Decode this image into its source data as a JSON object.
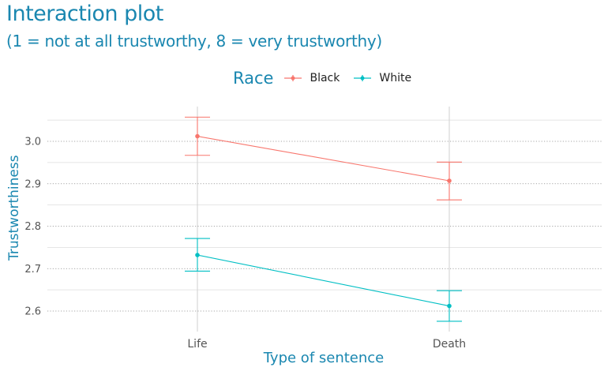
{
  "title": "Interaction plot",
  "subtitle": "(1 = not at all trustworthy, 8 = very trustworthy)",
  "legend": {
    "title": "Race",
    "items": [
      {
        "label": "Black",
        "color": "#F8766D"
      },
      {
        "label": "White",
        "color": "#00BFC4"
      }
    ]
  },
  "chart_data": {
    "type": "line",
    "title": "Interaction plot",
    "subtitle": "(1 = not at all trustworthy, 8 = very trustworthy)",
    "xlabel": "Type of sentence",
    "ylabel": "Trustworthiness",
    "categories": [
      "Life",
      "Death"
    ],
    "ylim": [
      2.56,
      3.07
    ],
    "yticks": [
      2.6,
      2.7,
      2.8,
      2.9,
      3.0
    ],
    "ytick_labels": [
      "2.6",
      "2.7",
      "2.8",
      "2.9",
      "3.0"
    ],
    "series": [
      {
        "name": "Black",
        "color": "#F8766D",
        "values": [
          3.012,
          2.907
        ],
        "lower": [
          2.967,
          2.862
        ],
        "upper": [
          3.057,
          2.951
        ]
      },
      {
        "name": "White",
        "color": "#00BFC4",
        "values": [
          2.732,
          2.612
        ],
        "lower": [
          2.694,
          2.576
        ],
        "upper": [
          2.771,
          2.648
        ]
      }
    ],
    "grid": true,
    "legend_position": "top"
  }
}
